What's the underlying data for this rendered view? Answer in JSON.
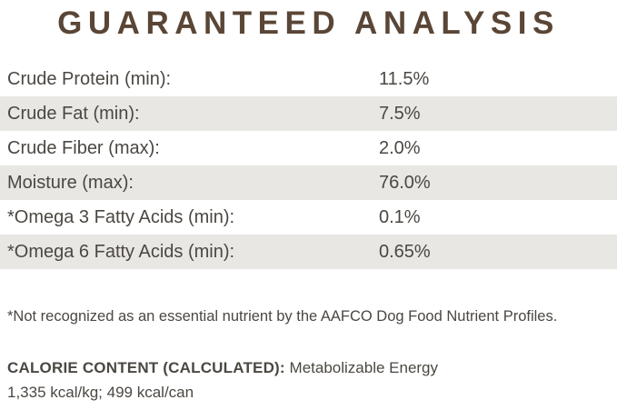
{
  "title": "GUARANTEED ANALYSIS",
  "colors": {
    "title_color": "#5a4636",
    "text_color": "#4b4742",
    "row_shade": "#e9e7e3",
    "page_bg": "#ffffff"
  },
  "table": {
    "rows": [
      {
        "label": "Crude Protein (min):",
        "value": "11.5%"
      },
      {
        "label": "Crude Fat (min):",
        "value": "7.5%"
      },
      {
        "label": "Crude Fiber (max):",
        "value": "2.0%"
      },
      {
        "label": "Moisture (max):",
        "value": "76.0%"
      },
      {
        "label": "*Omega 3 Fatty Acids (min):",
        "value": "0.1%"
      },
      {
        "label": "*Omega 6 Fatty Acids (min):",
        "value": "0.65%"
      }
    ]
  },
  "footnote": "*Not recognized as an essential nutrient by the AAFCO Dog Food Nutrient Profiles.",
  "calorie": {
    "heading": "CALORIE CONTENT (CALCULATED):",
    "subtitle": "Metabolizable Energy",
    "values": "1,335 kcal/kg; 499 kcal/can"
  }
}
